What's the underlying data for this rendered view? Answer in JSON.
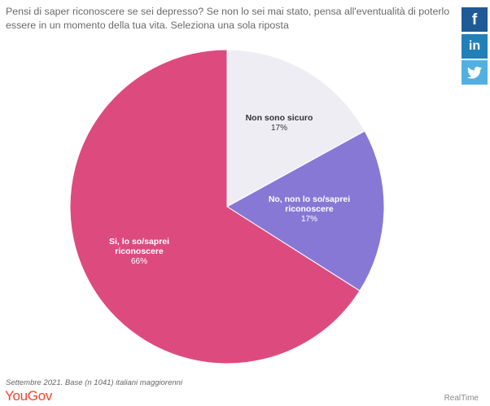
{
  "question": "Pensi di saper riconoscere se sei depresso? Se non lo sei mai stato, pensa all'eventualità di poterlo essere in un momento della tua vita. Seleziona una sola riposta",
  "share": {
    "facebook_icon": "f",
    "linkedin_icon": "in",
    "twitter_icon": "twitter-bird-icon"
  },
  "chart_data": {
    "type": "pie",
    "slices": [
      {
        "label_lines": [
          "Non sono sicuro"
        ],
        "value": 17,
        "value_label": "17%",
        "color": "#efedf4"
      },
      {
        "label_lines": [
          "No, non lo so/saprei",
          "riconoscere"
        ],
        "value": 17,
        "value_label": "17%",
        "color": "#8878d5"
      },
      {
        "label_lines": [
          "Si, lo so/saprei",
          "riconoscere"
        ],
        "value": 66,
        "value_label": "66%",
        "color": "#dd4b7e"
      }
    ]
  },
  "footnote": "Settembre 2021. Base (n 1041) italiani maggiorenni",
  "brand": "YouGov",
  "credit": "RealTime"
}
